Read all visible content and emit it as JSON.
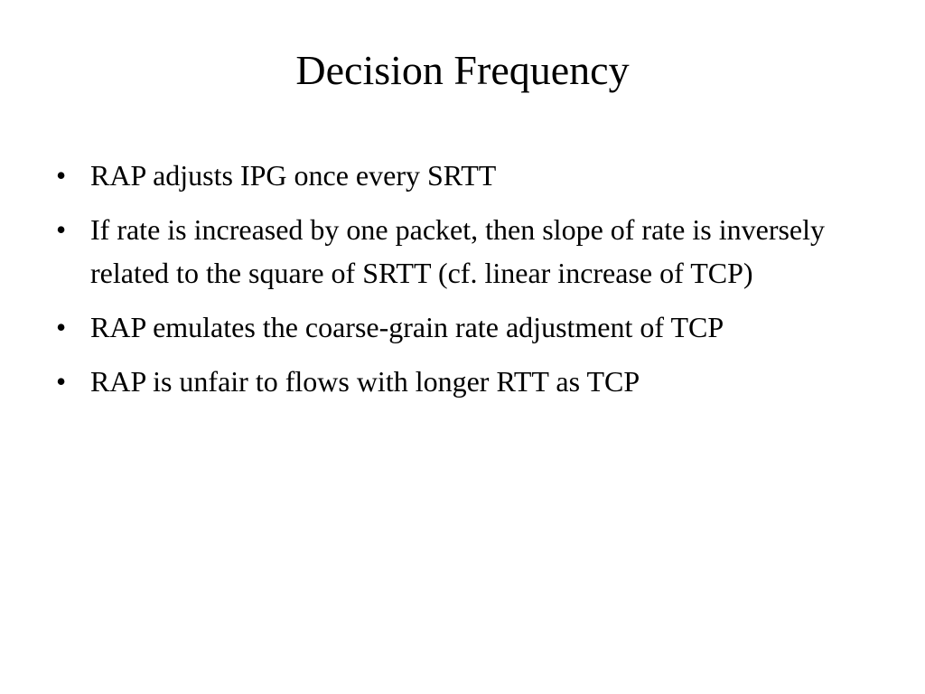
{
  "slide": {
    "title": "Decision Frequency",
    "bullet_symbol": "•",
    "bullets": [
      "RAP adjusts IPG once every SRTT",
      "If rate is increased by one packet, then slope of rate is inversely related to the square of SRTT (cf. linear increase of TCP)",
      "RAP emulates the coarse-grain rate adjustment of TCP",
      "RAP is unfair to flows with longer RTT as TCP"
    ]
  }
}
